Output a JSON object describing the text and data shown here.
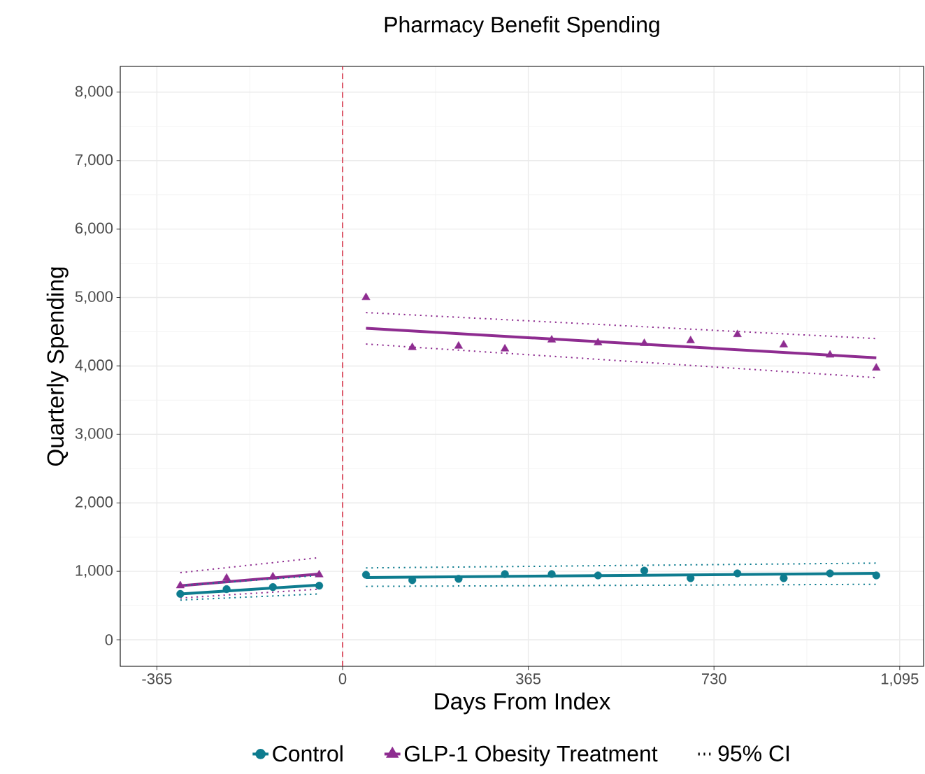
{
  "chart_data": {
    "type": "scatter",
    "title": "Pharmacy Benefit Spending",
    "xlabel": "Days From Index",
    "ylabel": "Quarterly Spending",
    "xlim": [
      -437,
      1142
    ],
    "ylim": [
      -388,
      8376
    ],
    "xticks": [
      -365,
      0,
      365,
      730,
      {
        "value": 1095,
        "label": "1,095"
      }
    ],
    "yticks": [
      0,
      {
        "value": 1000,
        "label": "1,000"
      },
      {
        "value": 2000,
        "label": "2,000"
      },
      {
        "value": 3000,
        "label": "3,000"
      },
      {
        "value": 4000,
        "label": "4,000"
      },
      {
        "value": 5000,
        "label": "5,000"
      },
      {
        "value": 6000,
        "label": "6,000"
      },
      {
        "value": 7000,
        "label": "7,000"
      },
      {
        "value": 8000,
        "label": "8,000"
      }
    ],
    "grid": true,
    "legend": "bottom",
    "annotations": [
      "95% CI"
    ],
    "ref_lines": [
      {
        "axis": "x",
        "value": 0,
        "color": "#d7263d",
        "line_style": "dashed"
      }
    ],
    "series": [
      {
        "name": "Control",
        "marker": "circle",
        "color": "#0e7c8f",
        "x": [
          -319,
          -228,
          -137,
          -46,
          46,
          137,
          228,
          319,
          411,
          502,
          593,
          684,
          776,
          867,
          958,
          1049
        ],
        "values": [
          670,
          740,
          770,
          790,
          950,
          870,
          890,
          960,
          960,
          940,
          1010,
          900,
          970,
          900,
          970,
          940
        ]
      },
      {
        "name": "GLP-1 Obesity Treatment",
        "marker": "triangle",
        "color": "#8e2c90",
        "x": [
          -319,
          -228,
          -137,
          -46,
          46,
          137,
          228,
          319,
          411,
          502,
          593,
          684,
          776,
          867,
          958,
          1049
        ],
        "values": [
          790,
          900,
          920,
          950,
          5000,
          4270,
          4290,
          4250,
          4380,
          4340,
          4330,
          4370,
          4460,
          4310,
          4160,
          3970
        ]
      },
      {
        "type": "line",
        "color": "#0e7c8f",
        "x": [
          -319,
          -46,
          0,
          46,
          1049
        ],
        "values": [
          670,
          800,
          null,
          910,
          970
        ]
      },
      {
        "type": "line",
        "color": "#8e2c90",
        "x": [
          -319,
          -46,
          0,
          46,
          1049
        ],
        "values": [
          790,
          960,
          null,
          4550,
          4120
        ]
      },
      {
        "type": "line",
        "line_style": "dotted",
        "color": "#0e7c8f",
        "x": [
          -319,
          -46,
          0,
          46,
          1049
        ],
        "values": [
          790,
          940,
          null,
          1050,
          1120
        ]
      },
      {
        "type": "line",
        "line_style": "dotted",
        "color": "#0e7c8f",
        "x": [
          -319,
          -46,
          0,
          46,
          1049
        ],
        "values": [
          580,
          670,
          null,
          780,
          810
        ]
      },
      {
        "type": "line",
        "line_style": "dotted",
        "color": "#8e2c90",
        "x": [
          -319,
          -46,
          0,
          46,
          1049
        ],
        "values": [
          980,
          1200,
          null,
          4780,
          4400
        ]
      },
      {
        "type": "line",
        "line_style": "dotted",
        "color": "#8e2c90",
        "x": [
          -319,
          -46,
          0,
          46,
          1049
        ],
        "values": [
          610,
          740,
          null,
          4320,
          3830
        ]
      }
    ]
  }
}
